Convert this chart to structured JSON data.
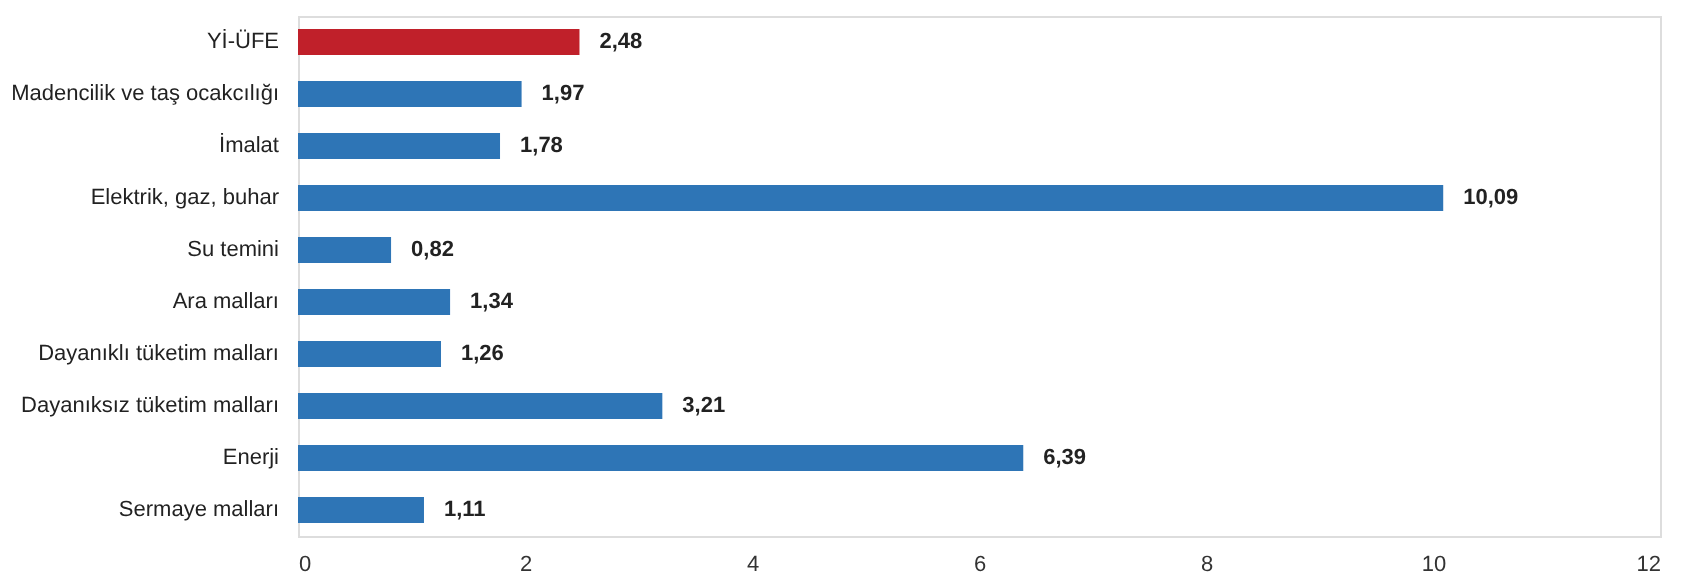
{
  "chart_data": {
    "type": "bar",
    "orientation": "horizontal",
    "categories": [
      "Yİ-ÜFE",
      "Madencilik ve taş ocakcılığı",
      "İmalat",
      "Elektrik, gaz, buhar",
      "Su temini",
      "Ara malları",
      "Dayanıklı tüketim malları",
      "Dayanıksız tüketim malları",
      "Enerji",
      "Sermaye malları"
    ],
    "values": [
      2.48,
      1.97,
      1.78,
      10.09,
      0.82,
      1.34,
      1.26,
      3.21,
      6.39,
      1.11
    ],
    "colors": [
      "#c0202a",
      "#2e75b6",
      "#2e75b6",
      "#2e75b6",
      "#2e75b6",
      "#2e75b6",
      "#2e75b6",
      "#2e75b6",
      "#2e75b6",
      "#2e75b6"
    ],
    "value_labels": [
      "2,48",
      "1,97",
      "1,78",
      "10,09",
      "0,82",
      "1,34",
      "1,26",
      "3,21",
      "6,39",
      "1,11"
    ],
    "xlim": [
      0,
      12
    ],
    "xticks": [
      0,
      2,
      4,
      6,
      8,
      10,
      12
    ],
    "grid": false
  }
}
